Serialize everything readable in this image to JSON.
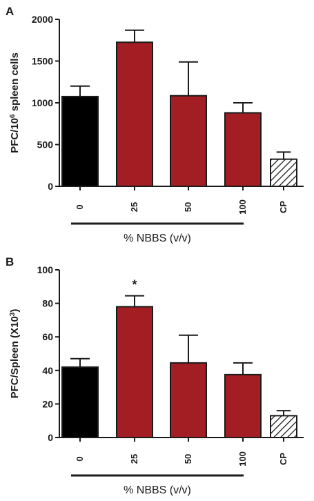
{
  "chart_data": [
    {
      "type": "bar",
      "panel_label": "A",
      "ylabel_main": "PFC/10",
      "ylabel_sup": "6",
      "ylabel_tail": " spleen cells",
      "ylim": [
        0,
        2000
      ],
      "yticks": [
        "0",
        "500",
        "1000",
        "1500",
        "2000"
      ],
      "ytick_values": [
        0,
        500,
        1000,
        1500,
        2000
      ],
      "categories": [
        "0",
        "25",
        "50",
        "100",
        "CP"
      ],
      "values": [
        1075,
        1725,
        1085,
        880,
        325
      ],
      "errors": [
        125,
        145,
        405,
        120,
        85
      ],
      "fills": [
        "#000000",
        "#a31e22",
        "#a31e22",
        "#a31e22",
        "hatch"
      ],
      "group_label": "% NBBS (v/v)",
      "annotations": []
    },
    {
      "type": "bar",
      "panel_label": "B",
      "ylabel_main": "PFC/Spleen (X10",
      "ylabel_sup": "3",
      "ylabel_tail": ")",
      "ylim": [
        0,
        100
      ],
      "yticks": [
        "0",
        "20",
        "40",
        "60",
        "80",
        "100"
      ],
      "ytick_values": [
        0,
        20,
        40,
        60,
        80,
        100
      ],
      "categories": [
        "0",
        "25",
        "50",
        "100",
        "CP"
      ],
      "values": [
        42,
        78,
        44.5,
        37.5,
        13
      ],
      "errors": [
        5,
        6.5,
        16.5,
        7,
        3
      ],
      "fills": [
        "#000000",
        "#a31e22",
        "#a31e22",
        "#a31e22",
        "hatch"
      ],
      "group_label": "% NBBS (v/v)",
      "annotations": [
        {
          "category_index": 1,
          "text": "*"
        }
      ]
    }
  ]
}
